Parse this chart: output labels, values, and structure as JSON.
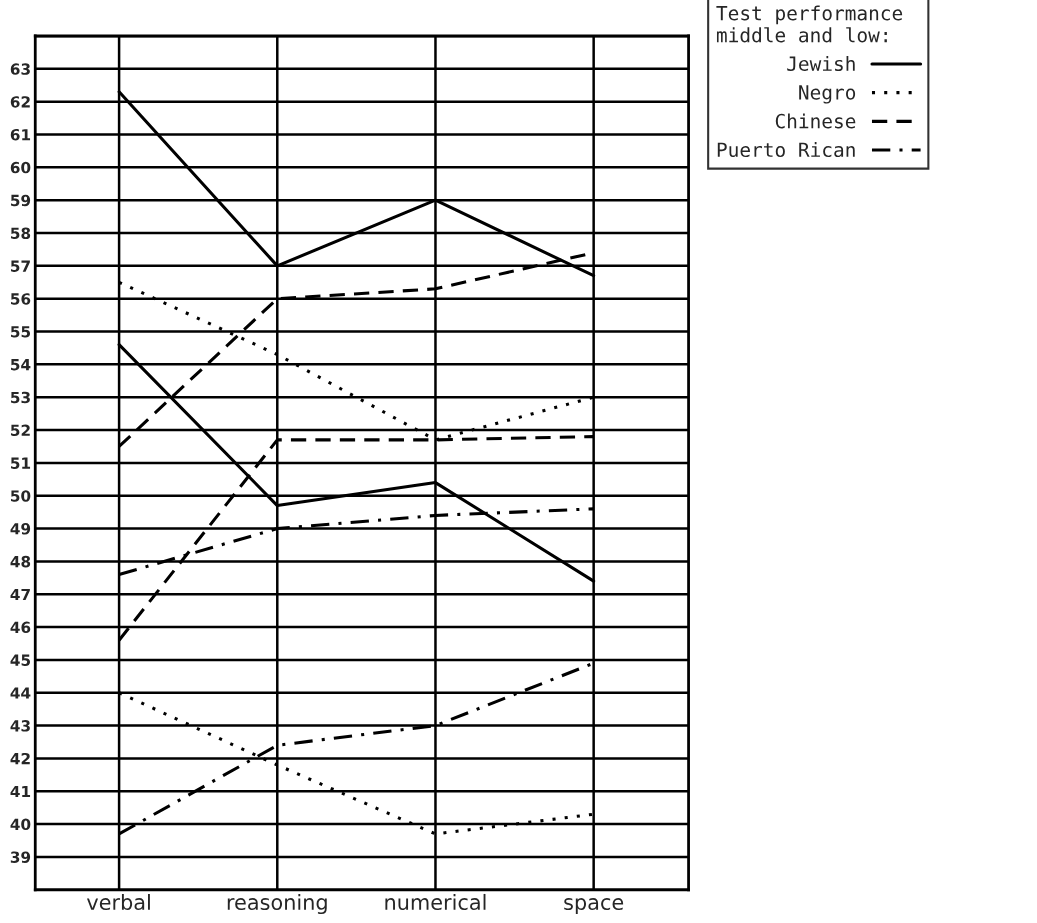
{
  "chart_data": {
    "type": "line",
    "legend_title": "Test performance\nmiddle and low:",
    "categories": [
      "verbal",
      "reasoning",
      "numerical",
      "space"
    ],
    "series": [
      {
        "name": "Jewish",
        "color": "#000000",
        "line_style": "solid",
        "values": [
          62.3,
          57.0,
          59.0,
          56.7
        ]
      },
      {
        "color": "#000000",
        "line_style": "solid",
        "values": [
          54.6,
          49.7,
          50.4,
          47.4
        ]
      },
      {
        "name": "Negro",
        "color": "#000000",
        "line_style": "dotted",
        "values": [
          56.5,
          54.3,
          51.7,
          53.0
        ]
      },
      {
        "color": "#000000",
        "line_style": "dotted",
        "values": [
          44.0,
          41.8,
          39.7,
          40.3
        ]
      },
      {
        "name": "Chinese",
        "color": "#000000",
        "line_style": "dashed",
        "values": [
          51.5,
          56.0,
          56.3,
          57.4
        ]
      },
      {
        "color": "#000000",
        "line_style": "dashed",
        "values": [
          45.6,
          51.7,
          51.7,
          51.8
        ]
      },
      {
        "name": "Puerto Rican",
        "color": "#000000",
        "line_style": "dashdot",
        "values": [
          47.6,
          49.0,
          49.4,
          49.6
        ]
      },
      {
        "color": "#000000",
        "line_style": "dashdot",
        "values": [
          39.7,
          42.4,
          43.0,
          44.9
        ]
      }
    ],
    "ylim": [
      38,
      64
    ],
    "yticks": [
      {
        "value": 38,
        "label": null
      },
      39,
      40,
      41,
      42,
      43,
      44,
      45,
      46,
      47,
      48,
      49,
      50,
      51,
      52,
      53,
      54,
      55,
      56,
      57,
      58,
      59,
      60,
      61,
      62,
      63,
      {
        "value": 64,
        "label": null
      }
    ],
    "grid": true,
    "legend": "top right",
    "marker": "none"
  }
}
